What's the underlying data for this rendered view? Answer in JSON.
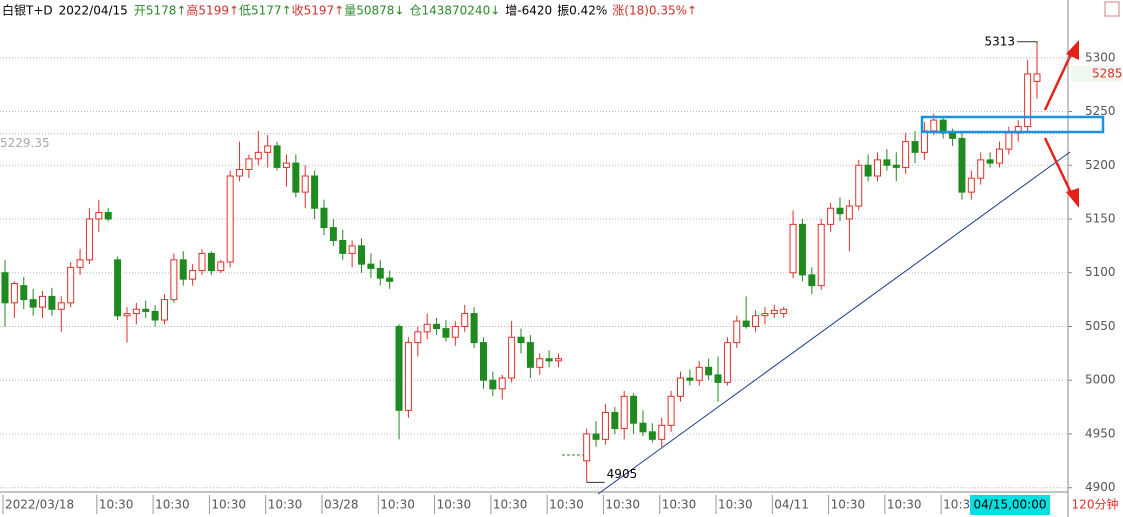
{
  "header": {
    "items": [
      {
        "text": "白银T+D",
        "color": "#000000"
      },
      {
        "text": "2022/04/15",
        "color": "#000000"
      },
      {
        "text": "开5178↑",
        "color": "#2a8a2a"
      },
      {
        "text": "高5199↑",
        "color": "#d0302a"
      },
      {
        "text": "低5177↑",
        "color": "#2a8a2a"
      },
      {
        "text": "收5197↑",
        "color": "#d0302a"
      },
      {
        "text": "量50878↓",
        "color": "#2a8a2a"
      },
      {
        "text": "仓143870240↓",
        "color": "#2a8a2a"
      },
      {
        "text": "增-6420",
        "color": "#000000"
      },
      {
        "text": "振0.42%",
        "color": "#000000"
      },
      {
        "text": "涨(18)0.35%↑",
        "color": "#d0302a"
      }
    ]
  },
  "chart_data": {
    "type": "candlestick",
    "categories": [
      "2022/03/18",
      null,
      null,
      null,
      null,
      null,
      null,
      null,
      null,
      null,
      "10:30",
      null,
      null,
      null,
      null,
      null,
      "10:30",
      null,
      null,
      null,
      null,
      null,
      "10:30",
      null,
      null,
      null,
      null,
      null,
      "10:30",
      null,
      null,
      null,
      null,
      null,
      "03/28",
      null,
      null,
      null,
      null,
      null,
      "10:30",
      null,
      null,
      null,
      null,
      null,
      "10:30",
      null,
      null,
      null,
      null,
      null,
      "10:30",
      null,
      null,
      null,
      null,
      null,
      "10:30",
      null,
      null,
      null,
      null,
      null,
      "10:30",
      null,
      null,
      null,
      null,
      null,
      "10:30",
      null,
      null,
      null,
      null,
      null,
      "10:30",
      null,
      null,
      null,
      null,
      null,
      "04/11",
      null,
      null,
      null,
      null,
      null,
      "10:30",
      null,
      null,
      null,
      null,
      null,
      "10:30",
      null,
      null,
      null,
      null,
      null,
      "10:30",
      null,
      null,
      null,
      null,
      null,
      null,
      null,
      null,
      null,
      null
    ],
    "open": [
      5100,
      5072,
      5088,
      5075,
      5068,
      5078,
      5066,
      5072,
      5105,
      5112,
      5150,
      5156,
      5112,
      5060,
      5062,
      5066,
      5064,
      5056,
      5075,
      5112,
      5094,
      5102,
      5118,
      5102,
      5110,
      5190,
      5196,
      5206,
      5212,
      5218,
      5198,
      5202,
      5175,
      5190,
      5160,
      5142,
      5130,
      5118,
      5125,
      5108,
      5104,
      5095,
      5050,
      4972,
      5035,
      5045,
      5052,
      5048,
      5040,
      5050,
      5062,
      5035,
      5000,
      4992,
      5002,
      5040,
      5035,
      5012,
      5020,
      5018,
      null,
      null,
      4925,
      4950,
      4945,
      4970,
      4955,
      4985,
      4960,
      4952,
      4945,
      4958,
      4985,
      5002,
      5000,
      5012,
      5005,
      4998,
      5035,
      5055,
      5050,
      5060,
      5062,
      5062,
      5100,
      5145,
      5098,
      5088,
      5145,
      5160,
      5150,
      5162,
      5200,
      5190,
      5205,
      5200,
      5198,
      5222,
      5212,
      5232,
      5242,
      5230,
      5225,
      5175,
      5188,
      5205,
      5202,
      5215,
      5230,
      5236,
      5278
    ],
    "high": [
      5112,
      5092,
      5096,
      5085,
      5083,
      5086,
      5078,
      5110,
      5122,
      5160,
      5168,
      5160,
      5115,
      5068,
      5072,
      5074,
      5070,
      5080,
      5118,
      5120,
      5108,
      5122,
      5120,
      5112,
      5195,
      5222,
      5210,
      5232,
      5228,
      5222,
      5210,
      5210,
      5200,
      5195,
      5168,
      5150,
      5140,
      5130,
      5132,
      5118,
      5112,
      5102,
      5052,
      5040,
      5050,
      5062,
      5058,
      5056,
      5055,
      5070,
      5068,
      5040,
      5008,
      5005,
      5055,
      5048,
      5042,
      5025,
      5028,
      5025,
      null,
      null,
      4955,
      4962,
      4978,
      4975,
      4990,
      4988,
      4972,
      4960,
      4965,
      4990,
      5008,
      5010,
      5018,
      5020,
      5022,
      5040,
      5060,
      5078,
      5065,
      5068,
      5070,
      5068,
      5158,
      5150,
      5105,
      5150,
      5165,
      5170,
      5168,
      5205,
      5210,
      5212,
      5215,
      5212,
      5230,
      5232,
      5240,
      5248,
      5244,
      5234,
      5230,
      5195,
      5212,
      5212,
      5222,
      5236,
      5242,
      5298,
      5313
    ],
    "low": [
      5050,
      5058,
      5066,
      5060,
      5058,
      5060,
      5045,
      5068,
      5098,
      5108,
      5138,
      5148,
      5056,
      5035,
      5052,
      5058,
      5050,
      5052,
      5072,
      5088,
      5088,
      5098,
      5098,
      5100,
      5105,
      5185,
      5188,
      5200,
      5198,
      5195,
      5180,
      5170,
      5160,
      5150,
      5135,
      5125,
      5112,
      5105,
      5100,
      5095,
      5088,
      5085,
      4945,
      4965,
      5022,
      5038,
      5042,
      5036,
      5032,
      5045,
      5030,
      4992,
      4985,
      4982,
      4998,
      5025,
      5002,
      5005,
      5012,
      5012,
      null,
      null,
      4905,
      4938,
      4940,
      4950,
      4945,
      4950,
      4948,
      4942,
      4938,
      4952,
      4980,
      4995,
      4995,
      5000,
      4980,
      4995,
      5030,
      5048,
      5045,
      5052,
      5058,
      5058,
      5095,
      5092,
      5080,
      5084,
      5138,
      5148,
      5120,
      5158,
      5185,
      5185,
      5195,
      5185,
      5192,
      5202,
      5205,
      5228,
      5225,
      5218,
      5168,
      5168,
      5182,
      5198,
      5198,
      5210,
      5222,
      5230,
      5262
    ],
    "close": [
      5072,
      5090,
      5075,
      5068,
      5078,
      5066,
      5072,
      5105,
      5112,
      5150,
      5156,
      5150,
      5060,
      5062,
      5066,
      5064,
      5056,
      5075,
      5112,
      5094,
      5102,
      5118,
      5102,
      5110,
      5190,
      5196,
      5206,
      5212,
      5218,
      5198,
      5202,
      5175,
      5190,
      5160,
      5142,
      5130,
      5118,
      5125,
      5108,
      5104,
      5095,
      5092,
      4972,
      5035,
      5045,
      5052,
      5048,
      5040,
      5050,
      5062,
      5035,
      5000,
      4992,
      5002,
      5040,
      5035,
      5012,
      5020,
      5018,
      5020,
      null,
      null,
      4950,
      4945,
      4970,
      4955,
      4985,
      4960,
      4952,
      4945,
      4958,
      4985,
      5002,
      5000,
      5012,
      5005,
      4998,
      5035,
      5055,
      5050,
      5060,
      5062,
      5065,
      5066,
      5145,
      5098,
      5088,
      5145,
      5160,
      5155,
      5162,
      5200,
      5190,
      5205,
      5200,
      5198,
      5222,
      5212,
      5232,
      5242,
      5230,
      5225,
      5175,
      5188,
      5205,
      5202,
      5215,
      5230,
      5236,
      5285,
      5285
    ],
    "up_color": "#e0302a",
    "down_color": "#1f8a1f",
    "ylim": [
      4896,
      5337
    ],
    "yticks": [
      4900,
      4950,
      5000,
      5050,
      5100,
      5150,
      5200,
      5250,
      5300
    ],
    "grid": true,
    "ref_line": 5229.35,
    "last_price": 5285,
    "cursor_label": "04/15,00:00",
    "period": "120分钟"
  }
}
